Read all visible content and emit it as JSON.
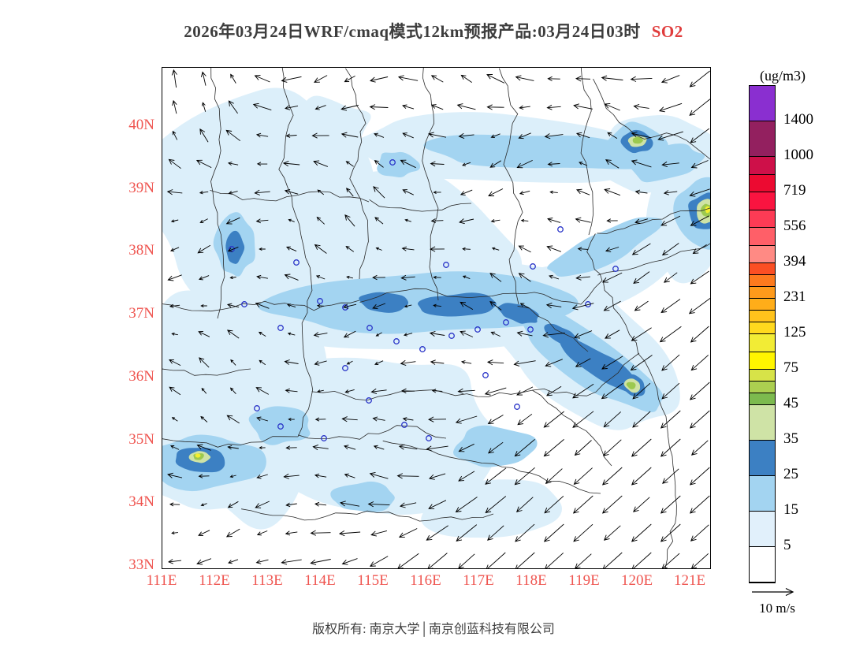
{
  "title": {
    "main": "2026年03月24日WRF/cmaq模式12km预报产品:03月24日03时",
    "species": "SO2",
    "text_color": "#3d3d3d",
    "species_color": "#e03c3c"
  },
  "axes": {
    "lat": [
      "40N",
      "39N",
      "38N",
      "37N",
      "36N",
      "35N",
      "34N",
      "33N"
    ],
    "lon": [
      "111E",
      "112E",
      "113E",
      "114E",
      "115E",
      "116E",
      "117E",
      "118E",
      "119E",
      "120E",
      "121E"
    ],
    "color": "#ef5550"
  },
  "legend": {
    "units": "(ug/m3)",
    "boundary_labels": [
      "1400",
      "1000",
      "719",
      "556",
      "394",
      "231",
      "125",
      "75",
      "45",
      "35",
      "25",
      "15",
      "5"
    ],
    "cells": [
      {
        "colors": [
          "#8a2fd0"
        ]
      },
      {
        "colors": [
          "#93205f"
        ]
      },
      {
        "colors": [
          "#ce1049",
          "#ec0a31"
        ]
      },
      {
        "colors": [
          "#fa1440",
          "#fd3b55"
        ]
      },
      {
        "colors": [
          "#ff5f68",
          "#ff8a84"
        ]
      },
      {
        "colors": [
          "#fb4f24",
          "#fd7a1e",
          "#fe9a1b"
        ]
      },
      {
        "colors": [
          "#ffad19",
          "#ffc31c",
          "#ffd91e"
        ]
      },
      {
        "colors": [
          "#f2ec35",
          "#fff500"
        ]
      },
      {
        "colors": [
          "#d7e348",
          "#accf50",
          "#7cba4e"
        ]
      },
      {
        "colors": [
          "#cfe3a6"
        ]
      },
      {
        "colors": [
          "#3c80c3"
        ]
      },
      {
        "colors": [
          "#a3d4f1"
        ]
      },
      {
        "colors": [
          "#e1f0fb"
        ]
      },
      {
        "colors": [
          "#ffffff"
        ]
      }
    ]
  },
  "wind_reference": {
    "label": "10 m/s"
  },
  "footer": "版权所有: 南京大学│南京创蓝科技有限公司",
  "map_colors": {
    "fill_5_15": "#dceffa",
    "fill_15_25": "#a3d4f1",
    "fill_25_35": "#3c80c3",
    "fill_35_45": "#cfe3a6",
    "fill_45_75": "#9cc94f",
    "fill_75_125": "#f4ee2e",
    "boundary": "#2a2a2a",
    "marker": "#2a35c8",
    "arrow": "#000000",
    "frame": "#000000"
  },
  "chart_data": {
    "type": "contour-map",
    "title": "2026年03月24日WRF/cmaq模式12km预报产品:03月24日03时 SO2",
    "species": "SO2",
    "units": "ug/m3",
    "model": "WRF/cmaq 12km",
    "forecast_time": "03月24日03时",
    "lon_labels": [
      "111E",
      "112E",
      "113E",
      "114E",
      "115E",
      "116E",
      "117E",
      "118E",
      "119E",
      "120E",
      "121E"
    ],
    "lat_labels": [
      "40N",
      "39N",
      "38N",
      "37N",
      "36N",
      "35N",
      "34N",
      "33N"
    ],
    "contour_levels": [
      5,
      15,
      25,
      35,
      45,
      75,
      125,
      231,
      394,
      556,
      719,
      1000,
      1400
    ],
    "wind_reference_speed_ms": 10,
    "copyright": "版权所有: 南京大学│南京创蓝科技有限公司"
  }
}
